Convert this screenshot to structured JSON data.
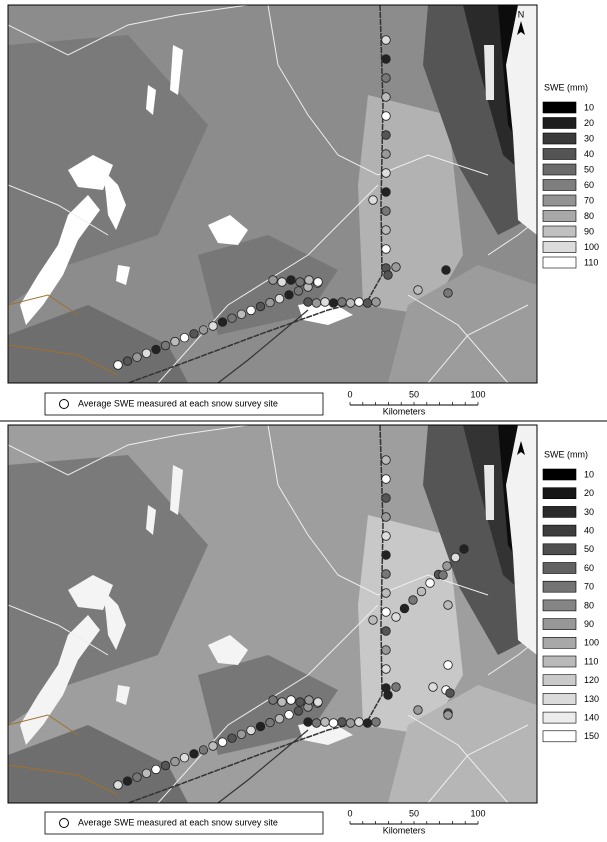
{
  "panels": [
    {
      "north": "N",
      "legend": {
        "title": "SWE (mm)",
        "labels": [
          "10",
          "20",
          "30",
          "40",
          "50",
          "60",
          "70",
          "80",
          "90",
          "100",
          "110"
        ],
        "colors": [
          "#000000",
          "#1e1e1e",
          "#3a3a3a",
          "#545454",
          "#6a6a6a",
          "#7e7e7e",
          "#939393",
          "#a8a8a8",
          "#c0c0c0",
          "#dcdcdc",
          "#ffffff"
        ]
      },
      "caption": "Average SWE measured at each snow survey site",
      "scale": {
        "ticks": [
          "0",
          "50",
          "100"
        ],
        "unit": "Kilometers"
      }
    },
    {
      "legend": {
        "title": "SWE (mm)",
        "labels": [
          "10",
          "20",
          "30",
          "40",
          "50",
          "60",
          "70",
          "80",
          "90",
          "100",
          "110",
          "120",
          "130",
          "140",
          "150"
        ],
        "colors": [
          "#000000",
          "#161616",
          "#2a2a2a",
          "#3d3d3d",
          "#4f4f4f",
          "#616161",
          "#737373",
          "#858585",
          "#979797",
          "#a8a8a8",
          "#b9b9b9",
          "#cacaca",
          "#dbdbdb",
          "#ececec",
          "#ffffff"
        ]
      },
      "caption": "Average SWE measured at each snow survey site",
      "scale": {
        "ticks": [
          "0",
          "50",
          "100"
        ],
        "unit": "Kilometers"
      }
    }
  ]
}
